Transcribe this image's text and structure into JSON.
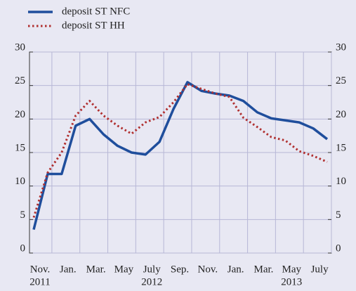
{
  "chart_data": {
    "type": "line",
    "categories": [
      "Nov.",
      null,
      "Jan.",
      null,
      "Mar.",
      null,
      "May",
      null,
      "July",
      null,
      "Sep.",
      null,
      "Nov.",
      null,
      "Jan.",
      null,
      "Mar.",
      null,
      "May",
      null,
      "July",
      null
    ],
    "years": [
      "2011",
      "2012",
      "2013"
    ],
    "series": [
      {
        "name": "deposit ST NFC",
        "color": "#1f4e9c",
        "style": "solid",
        "values": [
          3.5,
          11.8,
          11.8,
          19,
          20,
          17.7,
          16,
          15,
          14.7,
          16.6,
          21.5,
          25.5,
          24.2,
          23.8,
          23.5,
          22.7,
          21,
          20.1,
          19.8,
          19.5,
          18.6,
          17
        ]
      },
      {
        "name": "deposit ST HH",
        "color": "#b03030",
        "style": "dotted",
        "values": [
          5.3,
          12,
          15,
          20.5,
          22.7,
          20.5,
          19,
          17.8,
          19.5,
          20.3,
          22.5,
          25.2,
          24.5,
          23.8,
          23.3,
          20.2,
          18.8,
          17.3,
          16.8,
          15.2,
          14.5,
          13.6
        ]
      }
    ],
    "ylim": [
      0,
      30
    ],
    "yticks": [
      0,
      5,
      10,
      15,
      20,
      25,
      30
    ],
    "y2lim": [
      0,
      30
    ],
    "y2ticks": [
      0,
      5,
      10,
      15,
      20,
      25,
      30
    ],
    "grid": true,
    "legend": "top-left"
  }
}
